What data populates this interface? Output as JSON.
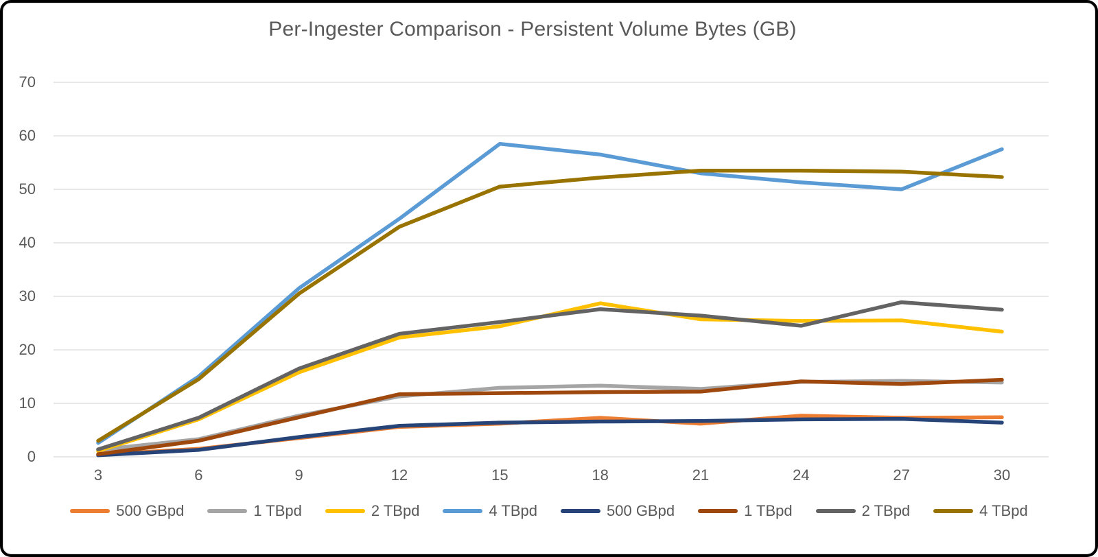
{
  "chart_data": {
    "type": "line",
    "title": "Per-Ingester Comparison - Persistent Volume Bytes (GB)",
    "xlabel": "",
    "ylabel": "",
    "x": [
      3,
      6,
      9,
      12,
      15,
      18,
      21,
      24,
      27,
      30
    ],
    "y_ticks": [
      0,
      10,
      20,
      30,
      40,
      50,
      60,
      70
    ],
    "ylim": [
      0,
      70
    ],
    "grid": "horizontal-only",
    "gridline_color": "#d9d9d9",
    "axis_label_color": "#595959",
    "legend_position": "bottom",
    "series": [
      {
        "name": "500 GBpd",
        "color": "#ED7D31",
        "values": [
          0.4,
          1.5,
          3.5,
          5.6,
          6.2,
          7.3,
          6.2,
          7.7,
          7.3,
          7.4
        ]
      },
      {
        "name": "1 TBpd",
        "color": "#A5A5A5",
        "values": [
          1.3,
          3.3,
          7.7,
          11.3,
          12.9,
          13.3,
          12.7,
          14.0,
          14.2,
          13.9
        ]
      },
      {
        "name": "2 TBpd",
        "color": "#FFC000",
        "values": [
          1.1,
          7.0,
          15.8,
          22.3,
          24.4,
          28.7,
          25.7,
          25.4,
          25.5,
          23.4
        ]
      },
      {
        "name": "4 TBpd",
        "color": "#5B9BD5",
        "values": [
          2.6,
          15.0,
          31.5,
          44.5,
          58.5,
          56.5,
          53.0,
          51.3,
          50.0,
          57.5
        ]
      },
      {
        "name": "500 GBpd",
        "color": "#264478",
        "values": [
          0.3,
          1.3,
          3.7,
          5.8,
          6.4,
          6.6,
          6.7,
          7.0,
          7.1,
          6.4
        ]
      },
      {
        "name": "1 TBpd",
        "color": "#9E480E",
        "values": [
          0.5,
          3.0,
          7.4,
          11.7,
          11.9,
          12.1,
          12.2,
          14.1,
          13.6,
          14.4
        ]
      },
      {
        "name": "2 TBpd",
        "color": "#636363",
        "values": [
          1.4,
          7.3,
          16.5,
          23.0,
          25.2,
          27.6,
          26.4,
          24.5,
          28.9,
          27.5
        ]
      },
      {
        "name": "4 TBpd",
        "color": "#997300",
        "values": [
          3.0,
          14.5,
          30.5,
          43.0,
          50.5,
          52.2,
          53.5,
          53.5,
          53.3,
          52.3
        ]
      }
    ]
  }
}
